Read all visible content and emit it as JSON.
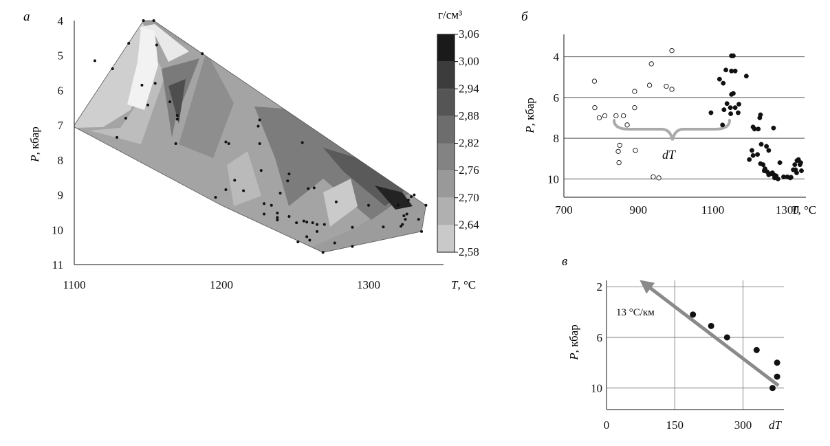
{
  "chart_data": [
    {
      "id": "a",
      "panel_label": "а",
      "type": "heatmap",
      "xlabel": "T, °C",
      "xlabel_italic": "T",
      "xlabel_unit": ", °C",
      "ylabel": "P, кбар",
      "ylabel_italic": "P",
      "ylabel_unit": ", кбар",
      "xlim": [
        1100,
        1350
      ],
      "ylim": [
        4,
        11
      ],
      "y_inverted": true,
      "xticks": [
        1100,
        1200,
        1300
      ],
      "yticks": [
        4,
        5,
        6,
        7,
        8,
        9,
        10,
        11
      ],
      "colorbar": {
        "unit_label": "г/см³",
        "levels": [
          "3,06",
          "3,00",
          "2,94",
          "2,88",
          "2,82",
          "2,76",
          "2,70",
          "2,64",
          "2,58"
        ],
        "colors": [
          "#1a1a1a",
          "#3c3c3c",
          "#555555",
          "#6d6d6d",
          "#838383",
          "#999999",
          "#b0b0b0",
          "#c9c9c9",
          "#e8e8e8"
        ]
      },
      "points": [
        [
          1147,
          4.0
        ],
        [
          1154,
          4.0
        ],
        [
          1156,
          4.7
        ],
        [
          1137,
          4.65
        ],
        [
          1114,
          5.15
        ],
        [
          1126,
          5.38
        ],
        [
          1146,
          5.85
        ],
        [
          1155,
          5.8
        ],
        [
          1187,
          4.95
        ],
        [
          1165,
          6.33
        ],
        [
          1150,
          6.42
        ],
        [
          1170,
          6.72
        ],
        [
          1170,
          6.83
        ],
        [
          1135,
          6.8
        ],
        [
          1129,
          7.35
        ],
        [
          1169,
          7.53
        ],
        [
          1203,
          7.48
        ],
        [
          1205,
          7.53
        ],
        [
          1226,
          6.85
        ],
        [
          1225,
          7.03
        ],
        [
          1226,
          7.53
        ],
        [
          1255,
          7.5
        ],
        [
          1227,
          8.3
        ],
        [
          1246,
          8.4
        ],
        [
          1245,
          8.6
        ],
        [
          1209,
          8.58
        ],
        [
          1215,
          8.88
        ],
        [
          1203,
          8.85
        ],
        [
          1196,
          9.07
        ],
        [
          1229,
          9.25
        ],
        [
          1234,
          9.3
        ],
        [
          1240,
          8.95
        ],
        [
          1238,
          9.52
        ],
        [
          1229,
          9.55
        ],
        [
          1238,
          9.65
        ],
        [
          1238,
          9.72
        ],
        [
          1246,
          9.62
        ],
        [
          1251,
          9.8
        ],
        [
          1256,
          9.75
        ],
        [
          1258,
          9.78
        ],
        [
          1262,
          9.8
        ],
        [
          1270,
          9.85
        ],
        [
          1265,
          9.85
        ],
        [
          1259,
          8.82
        ],
        [
          1263,
          8.8
        ],
        [
          1278,
          9.2
        ],
        [
          1277,
          10.38
        ],
        [
          1289,
          10.48
        ],
        [
          1260,
          10.3
        ],
        [
          1252,
          10.35
        ],
        [
          1269,
          10.65
        ],
        [
          1258,
          10.2
        ],
        [
          1265,
          10.05
        ],
        [
          1289,
          9.93
        ],
        [
          1310,
          9.92
        ],
        [
          1320,
          9.3
        ],
        [
          1322,
          9.9
        ],
        [
          1326,
          9.55
        ],
        [
          1327,
          9.15
        ],
        [
          1329,
          9.05
        ],
        [
          1331,
          9.0
        ],
        [
          1334,
          9.7
        ],
        [
          1336,
          10.05
        ],
        [
          1339,
          9.3
        ],
        [
          1325,
          9.7
        ],
        [
          1324,
          9.6
        ],
        [
          1323,
          9.85
        ],
        [
          1300,
          9.3
        ]
      ]
    },
    {
      "id": "b",
      "panel_label": "б",
      "type": "scatter",
      "xlabel": "T, °C",
      "xlabel_italic": "T",
      "xlabel_unit": ", °C",
      "ylabel": "P, кбар",
      "ylabel_italic": "P",
      "ylabel_unit": ", кбар",
      "xlim": [
        700,
        1350
      ],
      "ylim": [
        2.9,
        10.9
      ],
      "y_inverted": true,
      "xticks": [
        700,
        900,
        1100,
        1300
      ],
      "yticks": [
        4,
        6,
        8,
        10
      ],
      "grid": "horizontal",
      "annotation": "dT",
      "series": [
        {
          "marker": "open-circle",
          "points": [
            [
              990,
              3.7
            ],
            [
              935,
              4.35
            ],
            [
              782,
              5.2
            ],
            [
              890,
              5.7
            ],
            [
              930,
              5.4
            ],
            [
              975,
              5.45
            ],
            [
              990,
              5.6
            ],
            [
              783,
              6.5
            ],
            [
              840,
              6.9
            ],
            [
              795,
              7.0
            ],
            [
              810,
              6.9
            ],
            [
              860,
              6.9
            ],
            [
              890,
              6.5
            ],
            [
              870,
              7.35
            ],
            [
              850,
              8.35
            ],
            [
              846,
              8.65
            ],
            [
              892,
              8.6
            ],
            [
              848,
              9.2
            ],
            [
              940,
              9.9
            ],
            [
              955,
              9.95
            ]
          ]
        },
        {
          "marker": "filled-circle",
          "points": [
            [
              1150,
              3.95
            ],
            [
              1155,
              3.95
            ],
            [
              1135,
              4.65
            ],
            [
              1150,
              4.7
            ],
            [
              1160,
              4.7
            ],
            [
              1190,
              4.95
            ],
            [
              1118,
              5.1
            ],
            [
              1128,
              5.3
            ],
            [
              1150,
              5.85
            ],
            [
              1155,
              5.8
            ],
            [
              1138,
              6.3
            ],
            [
              1170,
              6.33
            ],
            [
              1160,
              6.5
            ],
            [
              1147,
              6.5
            ],
            [
              1148,
              6.8
            ],
            [
              1168,
              6.75
            ],
            [
              1095,
              6.75
            ],
            [
              1130,
              6.6
            ],
            [
              1126,
              7.35
            ],
            [
              1228,
              6.85
            ],
            [
              1226,
              7.0
            ],
            [
              1263,
              7.5
            ],
            [
              1208,
              7.45
            ],
            [
              1212,
              7.55
            ],
            [
              1222,
              7.55
            ],
            [
              1230,
              8.3
            ],
            [
              1244,
              8.4
            ],
            [
              1250,
              8.6
            ],
            [
              1205,
              8.6
            ],
            [
              1208,
              8.85
            ],
            [
              1198,
              9.05
            ],
            [
              1228,
              9.25
            ],
            [
              1235,
              9.3
            ],
            [
              1238,
              9.6
            ],
            [
              1246,
              9.65
            ],
            [
              1250,
              9.8
            ],
            [
              1255,
              9.75
            ],
            [
              1264,
              9.8
            ],
            [
              1270,
              9.85
            ],
            [
              1260,
              9.7
            ],
            [
              1280,
              9.2
            ],
            [
              1290,
              9.9
            ],
            [
              1300,
              9.9
            ],
            [
              1310,
              9.92
            ],
            [
              1320,
              9.3
            ],
            [
              1322,
              9.55
            ],
            [
              1326,
              9.1
            ],
            [
              1330,
              9.05
            ],
            [
              1334,
              9.3
            ],
            [
              1336,
              9.2
            ],
            [
              1338,
              9.6
            ],
            [
              1325,
              9.7
            ],
            [
              1316,
              9.55
            ],
            [
              1308,
              9.95
            ],
            [
              1266,
              9.95
            ],
            [
              1275,
              10.0
            ],
            [
              1240,
              9.5
            ],
            [
              1220,
              8.8
            ]
          ]
        }
      ]
    },
    {
      "id": "v",
      "panel_label": "в",
      "type": "scatter",
      "xlabel": "dT",
      "xlabel_italic": "dT",
      "ylabel": "P, кбар",
      "ylabel_italic": "P",
      "ylabel_unit": ", кбар",
      "xlim": [
        0,
        390
      ],
      "ylim": [
        1.5,
        11.7
      ],
      "y_inverted": true,
      "xticks": [
        0,
        150,
        300
      ],
      "yticks": [
        2,
        6,
        10
      ],
      "grid": "both",
      "points": [
        [
          190,
          4.2
        ],
        [
          230,
          5.1
        ],
        [
          265,
          6.0
        ],
        [
          330,
          7.0
        ],
        [
          375,
          8.0
        ],
        [
          375,
          9.1
        ],
        [
          365,
          10.0
        ]
      ],
      "trend": {
        "from": [
          378,
          9.8
        ],
        "to": [
          85,
          1.8
        ],
        "label": "13 °C/км"
      }
    }
  ]
}
